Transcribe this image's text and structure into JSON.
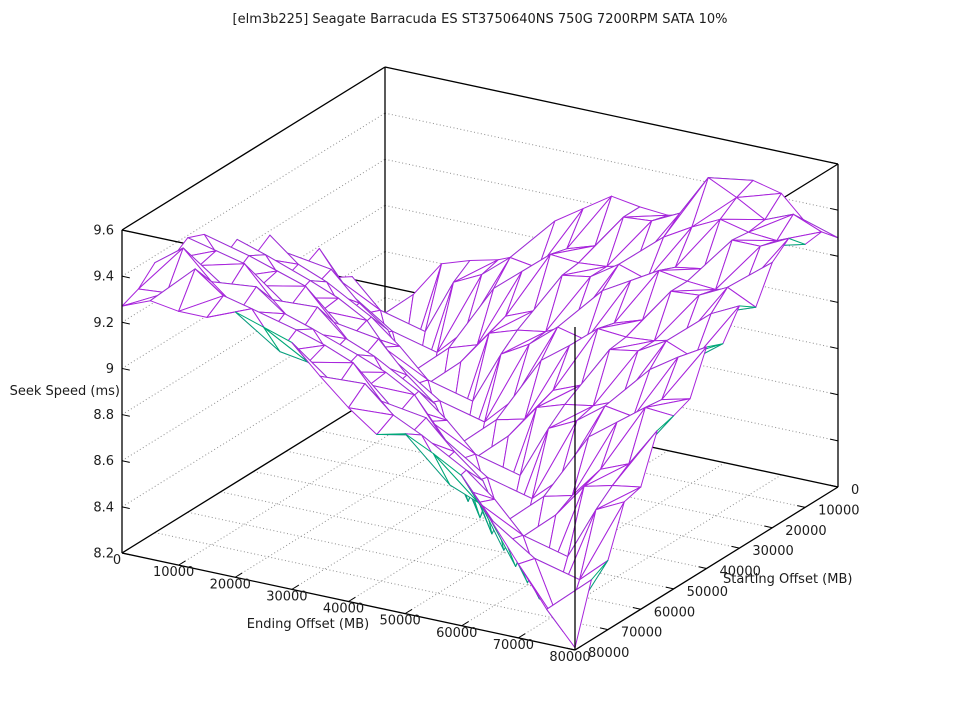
{
  "chart_data": {
    "type": "surface3d",
    "title": "[elm3b225] Seagate Barracuda ES ST3750640NS 750G 7200RPM SATA 10%",
    "xlabel": "Ending Offset (MB)",
    "ylabel": "Starting Offset (MB)",
    "zlabel": "Seek Speed (ms)",
    "x_range": [
      0,
      80000
    ],
    "y_range": [
      0,
      80000
    ],
    "z_range": [
      8.2,
      9.6
    ],
    "x_ticks": {
      "values": [
        0,
        10000,
        20000,
        30000,
        40000,
        50000,
        60000,
        70000,
        80000
      ],
      "labels": [
        "0",
        "10000",
        "20000",
        "30000",
        "40000",
        "50000",
        "60000",
        "70000",
        "80000"
      ]
    },
    "y_ticks": {
      "values": [
        0,
        10000,
        20000,
        30000,
        40000,
        50000,
        60000,
        70000,
        80000
      ],
      "labels": [
        "0",
        "10000",
        "20000",
        "30000",
        "40000",
        "50000",
        "60000",
        "70000",
        "80000"
      ]
    },
    "z_ticks": {
      "values": [
        8.2,
        8.4,
        8.6,
        8.8,
        9.0,
        9.2,
        9.4,
        9.6
      ],
      "labels": [
        "8.2",
        "8.4",
        "8.6",
        "8.8",
        "9",
        "9.2",
        "9.4",
        "9.6"
      ]
    },
    "z_wall_gridlines": [
      8.4,
      8.6,
      8.8,
      9.0,
      9.2,
      9.4
    ],
    "grid_on": true,
    "legend": "none",
    "colors": {
      "surface": "#a825dc",
      "underside": "#00a878",
      "grid": "#909090",
      "axis": "#000000",
      "text": "#1c1c1c",
      "background": "#ffffff"
    },
    "x_values": [
      0,
      5000,
      10000,
      15000,
      20000,
      25000,
      30000,
      35000,
      40000,
      45000,
      50000,
      55000,
      60000,
      65000,
      70000,
      75000,
      80000
    ],
    "y_values": [
      0,
      5000,
      10000,
      15000,
      20000,
      25000,
      30000,
      35000,
      40000,
      45000,
      50000,
      55000,
      60000,
      65000,
      70000,
      75000,
      80000
    ],
    "z_grid_note": "Seek Speed (ms); rows indexed by Ending Offset (x_values), columns by Starting Offset (y_values)",
    "z_grid": [
      [
        8.23,
        8.53,
        8.78,
        8.82,
        8.99,
        8.95,
        9.06,
        9.18,
        9.13,
        9.25,
        9.2,
        9.36,
        9.39,
        9.34,
        9.37,
        9.3,
        9.27
      ],
      [
        8.64,
        8.21,
        8.66,
        8.69,
        8.83,
        8.97,
        8.94,
        9.08,
        9.05,
        9.21,
        9.25,
        9.2,
        9.36,
        9.34,
        9.46,
        9.31,
        9.32
      ],
      [
        8.8,
        8.55,
        8.21,
        8.64,
        8.67,
        8.85,
        8.84,
        9.03,
        9.08,
        9.05,
        9.21,
        9.19,
        9.33,
        9.26,
        9.34,
        9.44,
        9.3
      ],
      [
        8.84,
        8.79,
        8.53,
        8.21,
        8.51,
        8.76,
        8.86,
        8.84,
        9.03,
        9.02,
        9.17,
        9.12,
        9.2,
        9.3,
        9.24,
        9.35,
        9.3
      ],
      [
        8.87,
        8.85,
        8.65,
        8.62,
        8.22,
        8.52,
        8.76,
        8.8,
        8.96,
        8.93,
        9.04,
        9.15,
        9.09,
        9.21,
        9.16,
        9.32,
        9.35
      ],
      [
        8.92,
        8.95,
        8.86,
        8.66,
        8.63,
        8.21,
        8.64,
        8.66,
        8.81,
        8.95,
        8.91,
        9.04,
        9.01,
        9.17,
        9.21,
        9.16,
        9.31
      ],
      [
        9.09,
        8.93,
        8.96,
        8.81,
        8.78,
        8.53,
        8.21,
        8.62,
        8.65,
        8.82,
        8.8,
        8.99,
        9.04,
        9.01,
        9.17,
        9.14,
        9.27
      ],
      [
        9.17,
        9.04,
        9.06,
        8.86,
        8.82,
        8.76,
        8.51,
        8.21,
        8.48,
        8.72,
        8.82,
        8.8,
        8.99,
        8.98,
        9.12,
        9.06,
        9.15
      ],
      [
        9.25,
        9.08,
        9.05,
        9.04,
        8.84,
        8.83,
        8.63,
        8.59,
        8.21,
        8.48,
        8.72,
        8.76,
        8.92,
        8.88,
        8.98,
        9.1,
        9.04
      ],
      [
        9.23,
        9.23,
        9.06,
        9.06,
        8.9,
        8.93,
        8.83,
        8.62,
        8.59,
        8.21,
        8.6,
        8.62,
        8.76,
        8.89,
        8.86,
        8.99,
        8.95
      ],
      [
        9.22,
        9.24,
        9.09,
        9.14,
        9.07,
        8.9,
        8.92,
        8.77,
        8.74,
        8.49,
        8.21,
        8.57,
        8.59,
        8.77,
        8.75,
        8.93,
        8.98
      ],
      [
        9.25,
        9.3,
        9.24,
        9.1,
        9.14,
        9.0,
        9.02,
        8.82,
        8.78,
        8.72,
        8.46,
        8.21,
        8.43,
        8.67,
        8.76,
        8.74,
        8.92
      ],
      [
        9.39,
        9.48,
        9.31,
        9.18,
        9.21,
        9.04,
        9.01,
        9.0,
        8.8,
        8.78,
        8.57,
        8.54,
        8.21,
        8.42,
        8.66,
        8.69,
        8.85
      ],
      [
        9.45,
        9.42,
        9.37,
        9.2,
        9.19,
        9.19,
        9.02,
        9.02,
        8.85,
        8.87,
        8.78,
        8.57,
        8.53,
        8.21,
        8.53,
        8.55,
        8.69
      ],
      [
        9.42,
        9.35,
        9.34,
        9.35,
        9.18,
        9.2,
        9.05,
        9.09,
        9.01,
        8.85,
        8.87,
        8.71,
        8.68,
        8.42,
        8.21,
        8.5,
        8.52
      ],
      [
        9.3,
        9.4,
        9.33,
        9.35,
        9.21,
        9.26,
        9.19,
        9.04,
        9.09,
        8.95,
        8.96,
        8.76,
        8.71,
        8.65,
        8.39,
        8.21,
        8.35
      ],
      [
        9.28,
        9.35,
        9.34,
        9.41,
        9.35,
        9.2,
        9.25,
        9.13,
        9.16,
        8.98,
        8.95,
        8.93,
        8.73,
        8.71,
        8.5,
        8.46,
        8.21
      ]
    ]
  }
}
